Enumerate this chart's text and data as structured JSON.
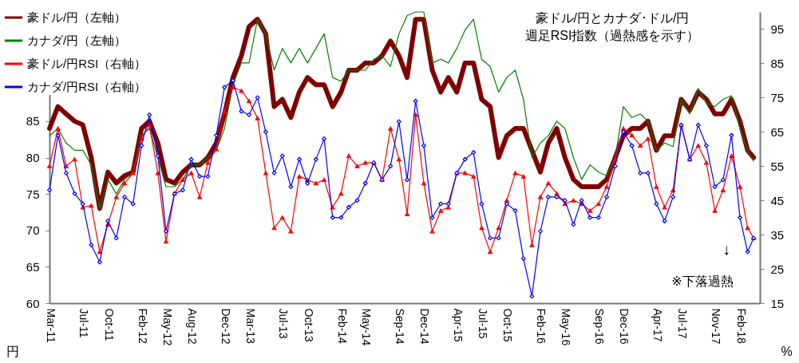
{
  "chart_data": {
    "type": "line",
    "title": "豪ドル/円とカナダ･ドル/円",
    "subtitle": "週足RSI指数（過熱感を示す）",
    "ylabel": "円",
    "y2label": "%",
    "annotations": [
      "↓",
      "※下落過熱"
    ],
    "x": [
      "2011-03-01",
      "2011-04-01",
      "2011-05-01",
      "2011-06-01",
      "2011-07-01",
      "2011-08-01",
      "2011-09-01",
      "2011-10-01",
      "2011-11-01",
      "2011-12-01",
      "2012-01-01",
      "2012-02-01",
      "2012-03-01",
      "2012-04-01",
      "2012-05-01",
      "2012-06-01",
      "2012-07-01",
      "2012-08-01",
      "2012-09-01",
      "2012-10-01",
      "2012-11-01",
      "2012-12-01",
      "2013-01-01",
      "2013-02-01",
      "2013-03-01",
      "2013-04-01",
      "2013-05-01",
      "2013-06-01",
      "2013-07-01",
      "2013-08-01",
      "2013-09-01",
      "2013-10-01",
      "2013-11-01",
      "2013-12-01",
      "2014-01-01",
      "2014-02-01",
      "2014-03-01",
      "2014-04-01",
      "2014-05-01",
      "2014-06-01",
      "2014-07-01",
      "2014-08-01",
      "2014-09-01",
      "2014-10-01",
      "2014-11-01",
      "2014-12-01",
      "2015-01-01",
      "2015-02-01",
      "2015-03-01",
      "2015-04-01",
      "2015-05-01",
      "2015-06-01",
      "2015-07-01",
      "2015-08-01",
      "2015-09-01",
      "2015-10-01",
      "2015-11-01",
      "2015-12-01",
      "2016-01-01",
      "2016-02-01",
      "2016-03-01",
      "2016-04-01",
      "2016-05-01",
      "2016-06-01",
      "2016-07-01",
      "2016-08-01",
      "2016-09-01",
      "2016-10-01",
      "2016-11-01",
      "2016-12-01",
      "2017-01-01",
      "2017-02-01",
      "2017-03-01",
      "2017-04-01",
      "2017-05-01",
      "2017-06-01",
      "2017-07-01",
      "2017-08-01",
      "2017-09-01",
      "2017-10-01",
      "2017-11-01",
      "2017-12-01",
      "2018-01-01",
      "2018-02-01",
      "2018-03-01",
      "2018-03-23"
    ],
    "xlim": [
      "2011-03-01",
      "2018-04-15"
    ],
    "xticks": [
      {
        "value": "2011-03-01",
        "label": "Mar-11"
      },
      {
        "value": "2011-07-01",
        "label": "Jul-11"
      },
      {
        "value": "2011-10-01",
        "label": "Oct-11"
      },
      {
        "value": "2012-02-01",
        "label": "Feb-12"
      },
      {
        "value": "2012-05-01",
        "label": "May-12"
      },
      {
        "value": "2012-08-01",
        "label": "Aug-12"
      },
      {
        "value": "2012-12-01",
        "label": "Dec-12"
      },
      {
        "value": "2013-03-01",
        "label": "Mar-13"
      },
      {
        "value": "2013-07-01",
        "label": "Jul-13"
      },
      {
        "value": "2013-10-01",
        "label": "Oct-13"
      },
      {
        "value": "2014-02-01",
        "label": "Feb-14"
      },
      {
        "value": "2014-05-01",
        "label": "May-14"
      },
      {
        "value": "2014-09-01",
        "label": "Sep-14"
      },
      {
        "value": "2014-12-01",
        "label": "Dec-14"
      },
      {
        "value": "2015-04-01",
        "label": "Apr-15"
      },
      {
        "value": "2015-07-01",
        "label": "Jul-15"
      },
      {
        "value": "2015-10-01",
        "label": "Oct-15"
      },
      {
        "value": "2016-02-01",
        "label": "Feb-16"
      },
      {
        "value": "2016-05-01",
        "label": "May-16"
      },
      {
        "value": "2016-09-01",
        "label": "Sep-16"
      },
      {
        "value": "2016-12-01",
        "label": "Dec-16"
      },
      {
        "value": "2017-04-01",
        "label": "Apr-17"
      },
      {
        "value": "2017-07-01",
        "label": "Jul-17"
      },
      {
        "value": "2017-11-01",
        "label": "Nov-17"
      },
      {
        "value": "2018-02-01",
        "label": "Feb-18"
      }
    ],
    "ylim": [
      60,
      100
    ],
    "yticks": [
      60,
      65,
      70,
      75,
      80,
      85
    ],
    "y2lim": [
      15,
      100
    ],
    "y2ticks": [
      15,
      25,
      35,
      45,
      55,
      65,
      75,
      85,
      95
    ],
    "grid": false,
    "legend": "top left",
    "series": [
      {
        "name": "豪ドル/円（左軸）",
        "color": "#800000",
        "marker": "none",
        "values": [
          84,
          87,
          86,
          85,
          84.5,
          80,
          73,
          78,
          76.5,
          77.5,
          78,
          84,
          85,
          82,
          77,
          76.5,
          78,
          79,
          79,
          80,
          82,
          86,
          91,
          94,
          98,
          99,
          97,
          87,
          88,
          85.5,
          89,
          91,
          90,
          90,
          87,
          89,
          92,
          92,
          93,
          93,
          94,
          96,
          94,
          91,
          99,
          99,
          92,
          89,
          91,
          89,
          93,
          93,
          88,
          87,
          80,
          83,
          84,
          84,
          81,
          78,
          82,
          84,
          80,
          77,
          76,
          76,
          76,
          77,
          80,
          83,
          84,
          84,
          85,
          81,
          83,
          83,
          88,
          86.5,
          89,
          88,
          86,
          86,
          88,
          85,
          81,
          80
        ]
      },
      {
        "name": "カナダ/円（左軸）",
        "color": "#008000",
        "marker": "none",
        "values": [
          83,
          84,
          82,
          81,
          81,
          79,
          73,
          77,
          75,
          77,
          78,
          83,
          84,
          80,
          76,
          76,
          77,
          79,
          79,
          80,
          81,
          84,
          90,
          93,
          93,
          99,
          97,
          92,
          95,
          93,
          95,
          93,
          95,
          97,
          91,
          90.5,
          92,
          92,
          92,
          93.5,
          94,
          92.5,
          97,
          99.5,
          100,
          100,
          93,
          93.5,
          93,
          95,
          97.5,
          99,
          93.5,
          92.5,
          89,
          91,
          92,
          88,
          80,
          82,
          83,
          85,
          84,
          80,
          77,
          79,
          78,
          77.5,
          80,
          87,
          85.5,
          86,
          85,
          81,
          82,
          81.5,
          88,
          86,
          89.5,
          87.5,
          87,
          88,
          88.5,
          84,
          81,
          79.5
        ]
      },
      {
        "name": "豪ドル/円RSI（右軸）",
        "color": "#ff0000",
        "axis": "y2",
        "marker": "triangle",
        "values": [
          55,
          66,
          55,
          57,
          43,
          43.5,
          30,
          38,
          46,
          50,
          53,
          63,
          67,
          53,
          33,
          47,
          51,
          53,
          46,
          56,
          60,
          71,
          78,
          77,
          74,
          69,
          53,
          37,
          40,
          36,
          52,
          51,
          50,
          51,
          43,
          47,
          58,
          55,
          56,
          56,
          51,
          66,
          57,
          41,
          70,
          50,
          36,
          42,
          43,
          53,
          53,
          52,
          37,
          30,
          37,
          45,
          53,
          52,
          32,
          46,
          50,
          47,
          44,
          45,
          44,
          42,
          44,
          49,
          57,
          66,
          64,
          61,
          63,
          49,
          43,
          48,
          67,
          57,
          61,
          56,
          42,
          48,
          58,
          49,
          37,
          34
        ]
      },
      {
        "name": "カナダ/円RSI（右軸）",
        "color": "#0000ff",
        "axis": "y2",
        "marker": "diamond",
        "values": [
          48,
          64,
          53,
          47,
          44,
          32,
          27,
          39,
          34,
          46,
          44,
          61,
          70,
          58,
          36,
          47,
          48,
          57,
          52,
          52,
          64,
          78,
          80,
          71,
          70,
          75,
          65,
          53,
          58,
          49,
          57,
          50,
          57,
          63,
          40,
          40,
          43,
          45,
          50,
          56,
          51,
          55,
          68,
          51,
          74,
          61,
          40,
          44,
          44,
          53,
          57,
          59,
          44,
          34,
          34,
          44,
          42,
          28,
          17,
          36,
          46,
          46,
          45,
          38,
          45,
          40,
          40,
          46,
          55,
          65,
          61,
          53,
          53,
          44,
          39,
          46,
          67,
          57,
          67,
          61,
          49,
          51,
          64,
          40,
          30,
          34
        ]
      }
    ]
  }
}
